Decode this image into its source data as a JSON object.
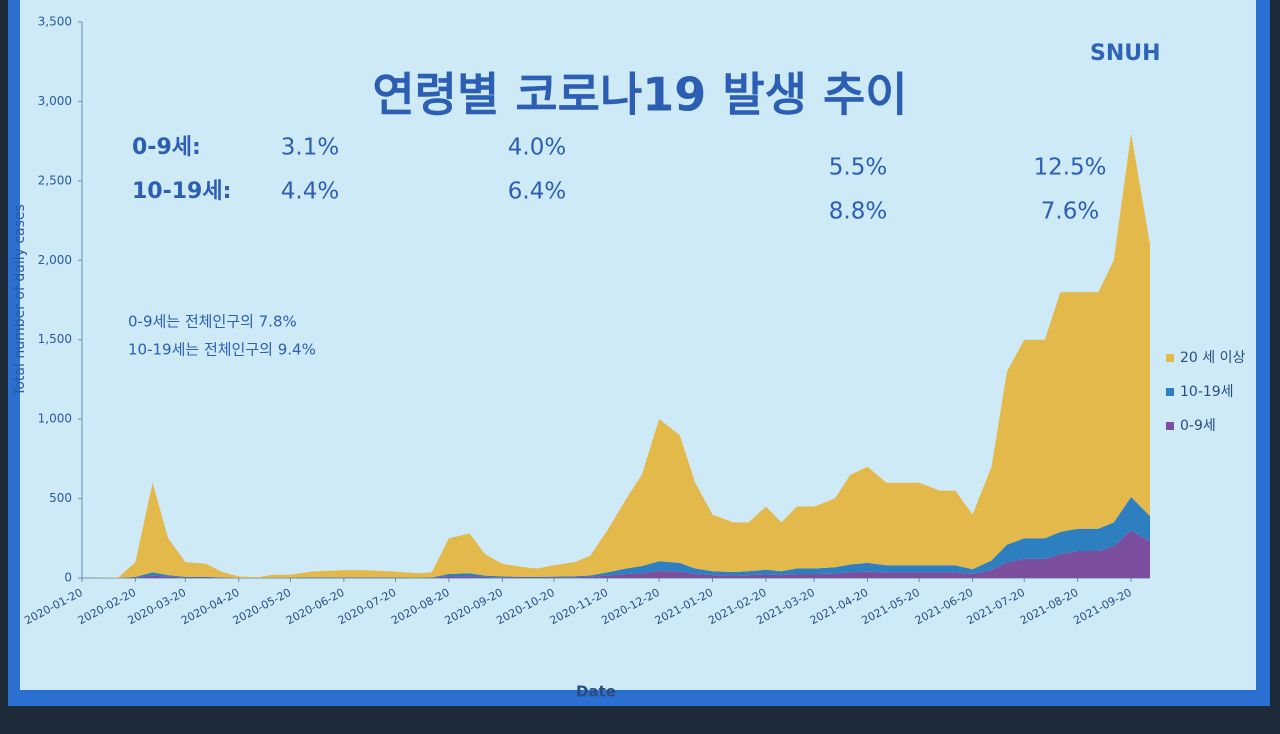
{
  "chart_data": {
    "type": "stacked_area",
    "title": "연령별 코로나19 발생 추이",
    "logo": "SNUH",
    "y_label": "Total number of daily cases",
    "x_label": "Date",
    "annotations": [
      {
        "label": "0-9세:",
        "values": [
          "3.1%",
          "4.0%",
          "5.5%",
          "12.5%"
        ]
      },
      {
        "label": "10-19세:",
        "values": [
          "4.4%",
          "6.4%",
          "8.8%",
          "7.6%"
        ]
      }
    ],
    "notes": [
      "0-9세는 전체인구의 7.8%",
      "10-19세는 전체인구의 9.4%"
    ],
    "x": [
      "2020-01-20",
      "2020-02-01",
      "2020-02-10",
      "2020-02-20",
      "2020-03-01",
      "2020-03-10",
      "2020-03-20",
      "2020-04-01",
      "2020-04-10",
      "2020-04-20",
      "2020-05-01",
      "2020-05-10",
      "2020-05-20",
      "2020-06-01",
      "2020-06-10",
      "2020-06-20",
      "2020-07-01",
      "2020-07-10",
      "2020-07-20",
      "2020-08-01",
      "2020-08-10",
      "2020-08-20",
      "2020-09-01",
      "2020-09-10",
      "2020-09-20",
      "2020-10-01",
      "2020-10-10",
      "2020-10-20",
      "2020-11-01",
      "2020-11-10",
      "2020-11-20",
      "2020-12-01",
      "2020-12-10",
      "2020-12-20",
      "2021-01-01",
      "2021-01-10",
      "2021-01-20",
      "2021-02-01",
      "2021-02-10",
      "2021-02-20",
      "2021-03-01",
      "2021-03-10",
      "2021-03-20",
      "2021-04-01",
      "2021-04-10",
      "2021-04-20",
      "2021-05-01",
      "2021-05-10",
      "2021-05-20",
      "2021-06-01",
      "2021-06-10",
      "2021-06-20",
      "2021-07-01",
      "2021-07-10",
      "2021-07-20",
      "2021-08-01",
      "2021-08-10",
      "2021-08-20",
      "2021-09-01",
      "2021-09-10",
      "2021-09-20",
      "2021-10-01"
    ],
    "series": [
      {
        "name": "0-9세",
        "color": "#7b4f9e",
        "values": [
          0,
          0,
          0,
          3,
          15,
          8,
          3,
          3,
          1,
          0,
          0,
          1,
          1,
          2,
          2,
          2,
          2,
          2,
          1,
          1,
          1,
          10,
          12,
          6,
          4,
          3,
          3,
          4,
          5,
          7,
          15,
          25,
          30,
          45,
          40,
          25,
          18,
          16,
          18,
          22,
          18,
          25,
          25,
          28,
          35,
          40,
          35,
          35,
          35,
          35,
          35,
          25,
          50,
          100,
          120,
          120,
          150,
          170,
          170,
          200,
          300,
          230
        ]
      },
      {
        "name": "10-19세",
        "color": "#2e7fc0",
        "values": [
          0,
          0,
          0,
          4,
          20,
          10,
          4,
          4,
          2,
          0,
          0,
          1,
          1,
          2,
          2,
          2,
          2,
          2,
          2,
          1,
          2,
          15,
          18,
          9,
          6,
          4,
          4,
          5,
          6,
          9,
          20,
          35,
          45,
          60,
          55,
          35,
          25,
          22,
          24,
          30,
          25,
          35,
          35,
          40,
          50,
          55,
          45,
          45,
          45,
          45,
          45,
          30,
          60,
          110,
          130,
          130,
          140,
          140,
          140,
          150,
          210,
          160
        ]
      },
      {
        "name": "20 세 이상",
        "color": "#e4b94c",
        "values": [
          0,
          2,
          3,
          93,
          565,
          232,
          93,
          83,
          37,
          10,
          5,
          18,
          18,
          36,
          41,
          46,
          46,
          41,
          37,
          28,
          32,
          225,
          250,
          135,
          80,
          63,
          53,
          71,
          89,
          124,
          265,
          440,
          575,
          895,
          805,
          540,
          357,
          312,
          308,
          398,
          307,
          390,
          390,
          432,
          565,
          605,
          520,
          520,
          520,
          470,
          470,
          345,
          590,
          1090,
          1250,
          1250,
          1510,
          1490,
          1490,
          1650,
          2290,
          1710
        ]
      }
    ],
    "xlim": [
      "2020-01-20",
      "2021-10-01"
    ],
    "xticks": [
      "2020-01-20",
      "2020-02-20",
      "2020-03-20",
      "2020-04-20",
      "2020-05-20",
      "2020-06-20",
      "2020-07-20",
      "2020-08-20",
      "2020-09-20",
      "2020-10-20",
      "2020-11-20",
      "2020-12-20",
      "2021-01-20",
      "2021-02-20",
      "2021-03-20",
      "2021-04-20",
      "2021-05-20",
      "2021-06-20",
      "2021-07-20",
      "2021-08-20",
      "2021-09-20"
    ],
    "ylim": [
      0,
      3500
    ],
    "yticks": [
      0,
      500,
      {
        "value": 1000,
        "label": "1,000"
      },
      {
        "value": 1500,
        "label": "1,500"
      },
      {
        "value": 2000,
        "label": "2,000"
      },
      {
        "value": 2500,
        "label": "2,500"
      },
      {
        "value": 3000,
        "label": "3,000"
      },
      {
        "value": 3500,
        "label": "3,500"
      }
    ],
    "legend": "right"
  }
}
